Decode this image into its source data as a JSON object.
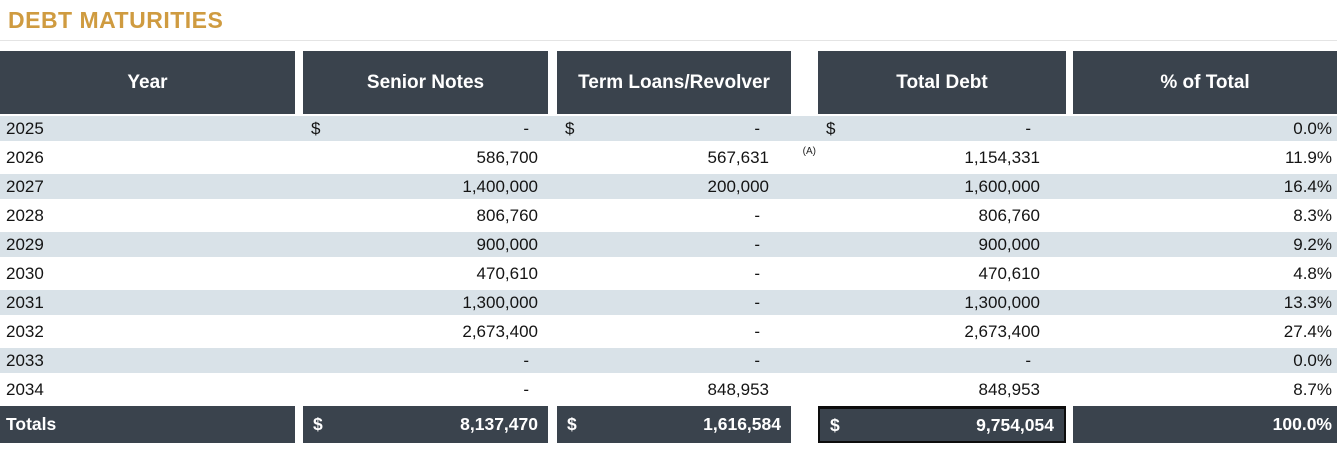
{
  "title": "DEBT MATURITIES",
  "colors": {
    "accent_gold": "#cf9b40",
    "header_dark": "#3a434d",
    "stripe_blue": "#d9e2e8",
    "grand_total_border": "#0d0d0d"
  },
  "table": {
    "headers": [
      "Year",
      "Senior Notes",
      "Term Loans/Revolver",
      "Total Debt",
      "% of Total"
    ],
    "rows": [
      {
        "year": "2025",
        "senior_notes": {
          "currency": "$",
          "value": "-"
        },
        "term_loans": {
          "currency": "$",
          "value": "-"
        },
        "total_debt": {
          "currency": "$",
          "value": "-"
        },
        "pct": "0.0%"
      },
      {
        "year": "2026",
        "senior_notes": {
          "value": "586,700"
        },
        "term_loans": {
          "value": "567,631",
          "note": "(A)"
        },
        "total_debt": {
          "value": "1,154,331"
        },
        "pct": "11.9%"
      },
      {
        "year": "2027",
        "senior_notes": {
          "value": "1,400,000"
        },
        "term_loans": {
          "value": "200,000"
        },
        "total_debt": {
          "value": "1,600,000"
        },
        "pct": "16.4%"
      },
      {
        "year": "2028",
        "senior_notes": {
          "value": "806,760"
        },
        "term_loans": {
          "value": "-"
        },
        "total_debt": {
          "value": "806,760"
        },
        "pct": "8.3%"
      },
      {
        "year": "2029",
        "senior_notes": {
          "value": "900,000"
        },
        "term_loans": {
          "value": "-"
        },
        "total_debt": {
          "value": "900,000"
        },
        "pct": "9.2%"
      },
      {
        "year": "2030",
        "senior_notes": {
          "value": "470,610"
        },
        "term_loans": {
          "value": "-"
        },
        "total_debt": {
          "value": "470,610"
        },
        "pct": "4.8%"
      },
      {
        "year": "2031",
        "senior_notes": {
          "value": "1,300,000"
        },
        "term_loans": {
          "value": "-"
        },
        "total_debt": {
          "value": "1,300,000"
        },
        "pct": "13.3%"
      },
      {
        "year": "2032",
        "senior_notes": {
          "value": "2,673,400"
        },
        "term_loans": {
          "value": "-"
        },
        "total_debt": {
          "value": "2,673,400"
        },
        "pct": "27.4%"
      },
      {
        "year": "2033",
        "senior_notes": {
          "value": "-"
        },
        "term_loans": {
          "value": "-"
        },
        "total_debt": {
          "value": "-"
        },
        "pct": "0.0%"
      },
      {
        "year": "2034",
        "senior_notes": {
          "value": "-"
        },
        "term_loans": {
          "value": "848,953"
        },
        "total_debt": {
          "value": "848,953"
        },
        "pct": "8.7%"
      }
    ],
    "totals": {
      "label": "Totals",
      "senior_notes": {
        "currency": "$",
        "value": "8,137,470"
      },
      "term_loans": {
        "currency": "$",
        "value": "1,616,584"
      },
      "total_debt": {
        "currency": "$",
        "value": "9,754,054"
      },
      "pct": "100.0%"
    }
  }
}
